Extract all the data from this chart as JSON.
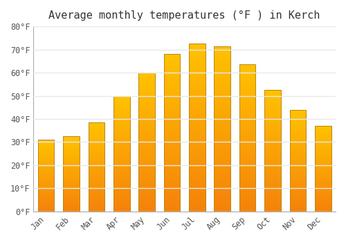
{
  "title": "Average monthly temperatures (°F ) in Kerch",
  "months": [
    "Jan",
    "Feb",
    "Mar",
    "Apr",
    "May",
    "Jun",
    "Jul",
    "Aug",
    "Sep",
    "Oct",
    "Nov",
    "Dec"
  ],
  "values": [
    31,
    32.5,
    38.5,
    50,
    60,
    68,
    72.5,
    71.5,
    63.5,
    52.5,
    44,
    37
  ],
  "bar_color_top": "#FFC200",
  "bar_color_bottom": "#F5820A",
  "bar_edge_color": "#B8860B",
  "background_color": "#FFFFFF",
  "grid_color": "#E8E8E8",
  "ylim": [
    0,
    80
  ],
  "yticks": [
    0,
    10,
    20,
    30,
    40,
    50,
    60,
    70,
    80
  ],
  "ytick_labels": [
    "0°F",
    "10°F",
    "20°F",
    "30°F",
    "40°F",
    "50°F",
    "60°F",
    "70°F",
    "80°F"
  ],
  "title_fontsize": 11,
  "tick_fontsize": 8.5,
  "font_family": "monospace"
}
